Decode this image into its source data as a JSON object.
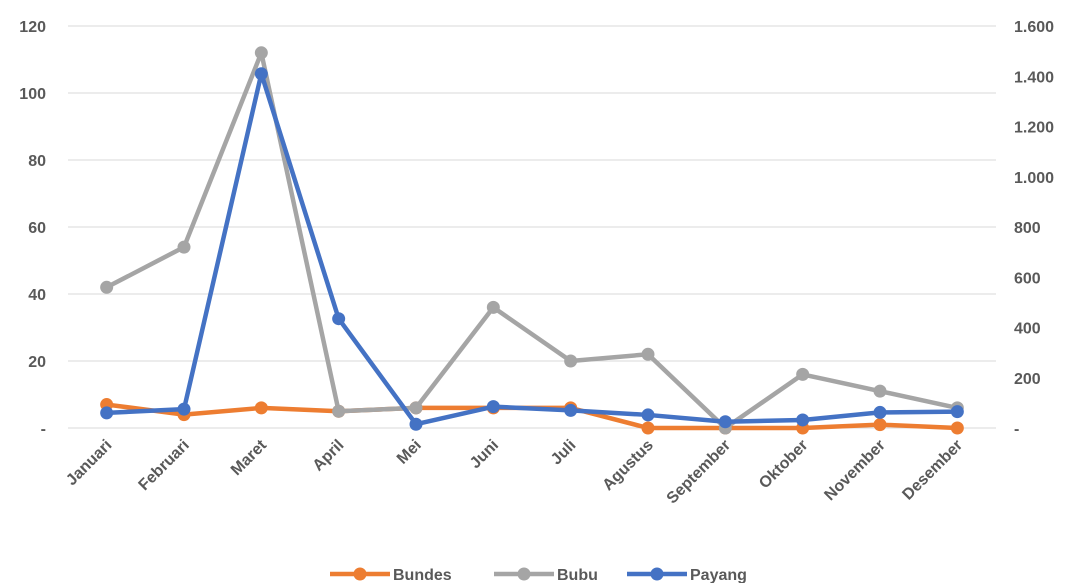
{
  "chart_data": {
    "type": "line",
    "categories": [
      "Januari",
      "Februari",
      "Maret",
      "April",
      "Mei",
      "Juni",
      "Juli",
      "Agustus",
      "September",
      "Oktober",
      "November",
      "Desember"
    ],
    "y_left": {
      "ylim": [
        0,
        120
      ],
      "ticks": [
        0,
        20,
        40,
        60,
        80,
        100,
        120
      ],
      "tick_labels": [
        "-",
        "20",
        "40",
        "60",
        "80",
        "100",
        "120"
      ]
    },
    "y_right": {
      "ylim": [
        0,
        1600
      ],
      "ticks": [
        0,
        200,
        400,
        600,
        800,
        1000,
        1200,
        1400,
        1600
      ],
      "tick_labels": [
        "-",
        "200",
        "400",
        "600",
        "800",
        "1.000",
        "1.200",
        "1.400",
        "1.600"
      ]
    },
    "series": [
      {
        "name": "Bundes",
        "axis": "left",
        "color": "#ED7D31",
        "values": [
          7,
          4,
          6,
          5,
          6,
          6,
          6,
          0,
          0,
          0,
          1,
          0
        ]
      },
      {
        "name": "Bubu",
        "axis": "left",
        "color": "#A5A5A5",
        "values": [
          42,
          54,
          112,
          5,
          6,
          36,
          20,
          22,
          0,
          16,
          11,
          6
        ]
      },
      {
        "name": "Payang",
        "axis": "right",
        "color": "#4472C4",
        "values": [
          60,
          75,
          1410,
          435,
          15,
          85,
          70,
          52,
          25,
          32,
          62,
          65
        ]
      }
    ],
    "grid": true,
    "legend_position": "bottom"
  }
}
